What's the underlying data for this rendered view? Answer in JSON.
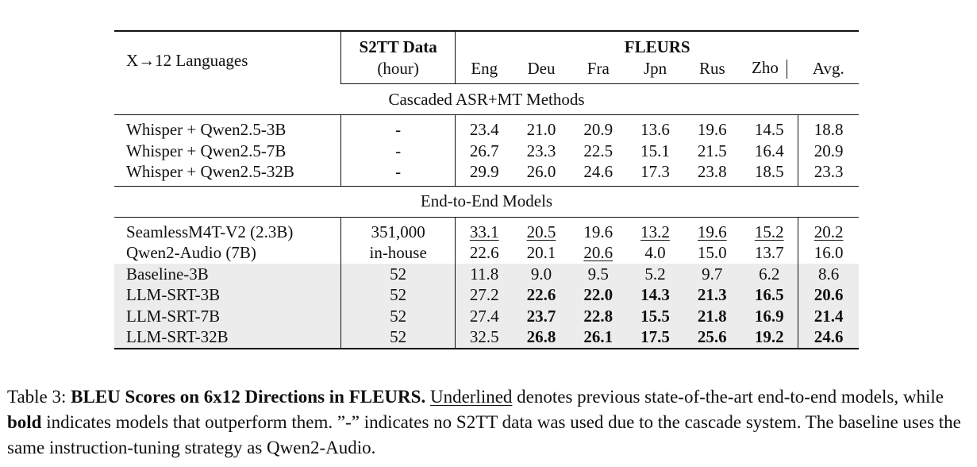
{
  "table": {
    "header": {
      "row_label": "X→12 Languages",
      "data_col_line1": "S2TT Data",
      "data_col_line2": "(hour)",
      "group_label": "FLEURS",
      "langs": [
        "Eng",
        "Deu",
        "Fra",
        "Jpn",
        "Rus",
        "Zho"
      ],
      "avg": "Avg."
    },
    "sections": {
      "cascaded": "Cascaded ASR+MT Methods",
      "e2e": "End-to-End Models"
    },
    "rows": [
      {
        "name": "Whisper + Qwen2.5-3B",
        "data": "-",
        "vals": [
          "23.4",
          "21.0",
          "20.9",
          "13.6",
          "19.6",
          "14.5"
        ],
        "avg": "18.8"
      },
      {
        "name": "Whisper + Qwen2.5-7B",
        "data": "-",
        "vals": [
          "26.7",
          "23.3",
          "22.5",
          "15.1",
          "21.5",
          "16.4"
        ],
        "avg": "20.9"
      },
      {
        "name": "Whisper + Qwen2.5-32B",
        "data": "-",
        "vals": [
          "29.9",
          "26.0",
          "24.6",
          "17.3",
          "23.8",
          "18.5"
        ],
        "avg": "23.3"
      },
      {
        "name": "SeamlessM4T-V2 (2.3B)",
        "data": "351,000",
        "vals": [
          "33.1",
          "20.5",
          "19.6",
          "13.2",
          "19.6",
          "15.2"
        ],
        "avg": "20.2"
      },
      {
        "name": "Qwen2-Audio (7B)",
        "data": "in-house",
        "vals": [
          "22.6",
          "20.1",
          "20.6",
          "4.0",
          "15.0",
          "13.7"
        ],
        "avg": "16.0"
      },
      {
        "name": "Baseline-3B",
        "data": "52",
        "vals": [
          "11.8",
          "9.0",
          "9.5",
          "5.2",
          "9.7",
          "6.2"
        ],
        "avg": "8.6"
      },
      {
        "name": "LLM-SRT-3B",
        "data": "52",
        "vals": [
          "27.2",
          "22.6",
          "22.0",
          "14.3",
          "21.3",
          "16.5"
        ],
        "avg": "20.6"
      },
      {
        "name": "LLM-SRT-7B",
        "data": "52",
        "vals": [
          "27.4",
          "23.7",
          "22.8",
          "15.5",
          "21.8",
          "16.9"
        ],
        "avg": "21.4"
      },
      {
        "name": "LLM-SRT-32B",
        "data": "52",
        "vals": [
          "32.5",
          "26.8",
          "26.1",
          "17.5",
          "25.6",
          "19.2"
        ],
        "avg": "24.6"
      }
    ]
  },
  "caption": {
    "label": "Table 3:",
    "title": "BLEU Scores on 6x12 Directions in FLEURS.",
    "underlined_word": "Underlined",
    "text1": "denotes previous state-of-the-art end-to-end models, while",
    "bold_word": "bold",
    "text2": "indicates models that outperform them. ”-” indicates no S2TT data was used due to the cascade system. The baseline uses the same instruction-tuning strategy as Qwen2-Audio."
  }
}
